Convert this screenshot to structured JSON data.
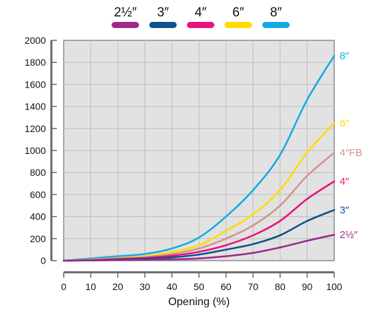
{
  "chart_data": {
    "type": "line",
    "title": "",
    "xlabel": "Opening (%)",
    "ylabel": "",
    "xlim": [
      0,
      100
    ],
    "ylim": [
      0,
      2000
    ],
    "x_ticks": [
      "0",
      "10",
      "20",
      "30",
      "40",
      "50",
      "60",
      "70",
      "80",
      "90",
      "100"
    ],
    "y_ticks": [
      "0",
      "200",
      "400",
      "600",
      "800",
      "1000",
      "1200",
      "1400",
      "1600",
      "1800",
      "2000"
    ],
    "grid": true,
    "legend": {
      "placement": "top",
      "entries": [
        {
          "label": "2½″",
          "color": "#a0288c"
        },
        {
          "label": "3″",
          "color": "#10508c"
        },
        {
          "label": "4″",
          "color": "#e6147c"
        },
        {
          "label": "6″",
          "color": "#ffdc00"
        },
        {
          "label": "8″",
          "color": "#14aae6"
        }
      ]
    },
    "x": [
      0,
      10,
      20,
      30,
      40,
      50,
      60,
      70,
      80,
      90,
      100
    ],
    "series": [
      {
        "name": "8″",
        "end_label": "8″",
        "color": "#14aae6",
        "values": [
          0,
          20,
          40,
          60,
          110,
          210,
          400,
          640,
          960,
          1460,
          1860
        ]
      },
      {
        "name": "6″",
        "end_label": "6″",
        "color": "#ffdc00",
        "values": [
          0,
          10,
          25,
          40,
          80,
          140,
          270,
          420,
          640,
          980,
          1250
        ]
      },
      {
        "name": "4″FB",
        "end_label": "4″FB",
        "color": "#d4938c",
        "values": [
          0,
          8,
          20,
          32,
          60,
          110,
          200,
          320,
          500,
          770,
          980
        ]
      },
      {
        "name": "4″",
        "end_label": "4″",
        "color": "#e6147c",
        "values": [
          0,
          5,
          15,
          25,
          45,
          80,
          140,
          230,
          360,
          560,
          720
        ]
      },
      {
        "name": "3″",
        "end_label": "3″",
        "color": "#10508c",
        "values": [
          0,
          3,
          10,
          18,
          30,
          55,
          100,
          150,
          230,
          360,
          460
        ]
      },
      {
        "name": "2½″",
        "end_label": "2½″",
        "color": "#a0288c",
        "values": [
          0,
          2,
          5,
          8,
          12,
          20,
          40,
          70,
          120,
          180,
          235
        ]
      }
    ]
  }
}
